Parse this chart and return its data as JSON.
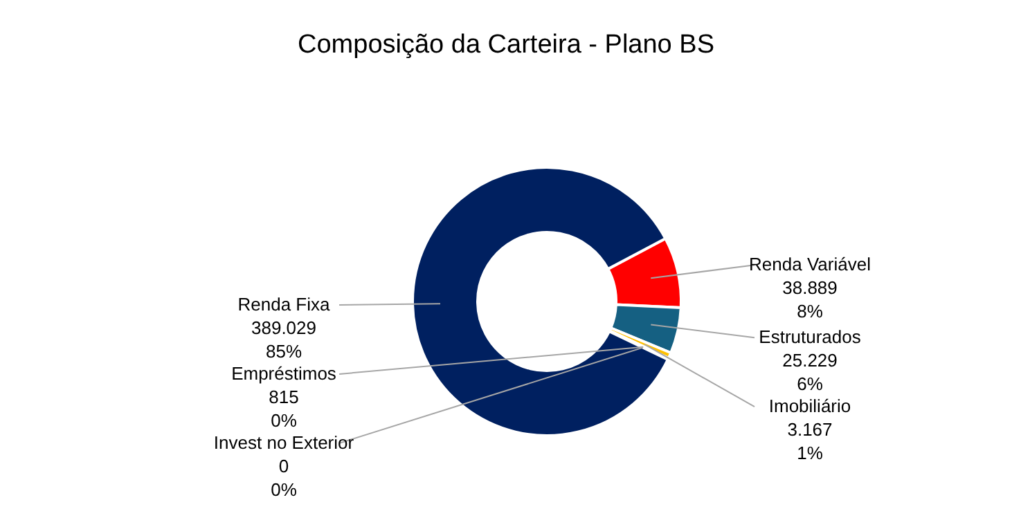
{
  "chart_data": {
    "type": "donut",
    "title": "Composição da Carteira - Plano BS",
    "categories": [
      "Renda Variável",
      "Estruturados",
      "Imobiliário",
      "Empréstimos",
      "Invest no Exterior",
      "Renda Fixa"
    ],
    "values": [
      38889,
      25229,
      3167,
      815,
      0,
      389029
    ],
    "colors": [
      "#ff0000",
      "#156082",
      "#ffc000",
      "#d9d9d9",
      "#a5a5a5",
      "#002060"
    ],
    "value_labels": [
      "38.889\n8%",
      "25.229\n6%",
      "3.167\n1%",
      "815\n0%",
      "0\n0%",
      "389.029\n85%"
    ]
  }
}
